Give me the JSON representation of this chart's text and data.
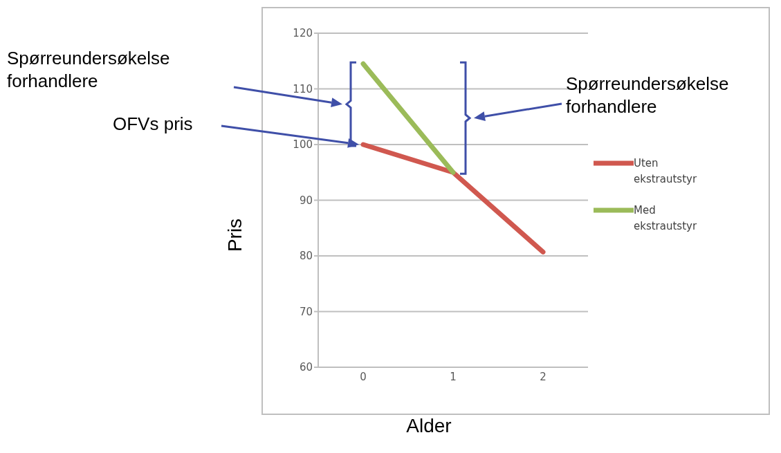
{
  "chart_data": {
    "type": "line",
    "xlabel": "Alder",
    "ylabel": "Pris",
    "categories": [
      "0",
      "1",
      "2"
    ],
    "series": [
      {
        "name": "Uten ekstrautstyr",
        "color": "#d0584f",
        "values": [
          100,
          95,
          80.7
        ]
      },
      {
        "name": "Med ekstrautstyr",
        "color": "#9bbb59",
        "values": [
          114.5,
          95,
          null
        ]
      }
    ],
    "ylim": [
      60,
      120
    ],
    "yticks": [
      60,
      70,
      80,
      90,
      100,
      110,
      120
    ],
    "grid": "y",
    "legend": "right",
    "marker": "none",
    "line_style": "solid",
    "annotations": [
      "Spørreundersøkelse forhandlere",
      "OFVs pris",
      "Spørreundersøkelse forhandlere"
    ]
  }
}
